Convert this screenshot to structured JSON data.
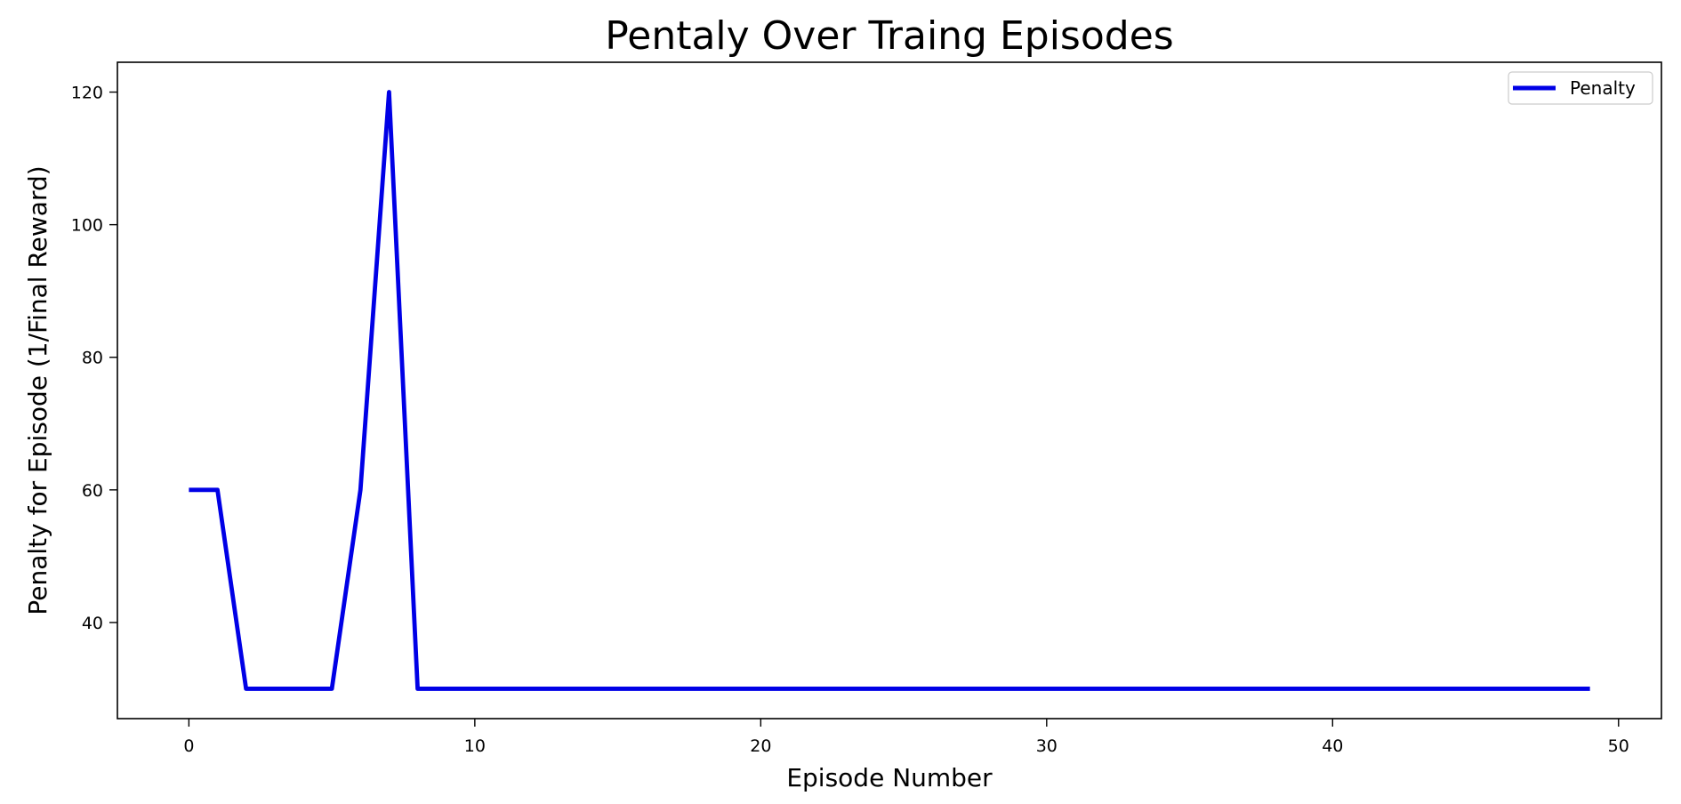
{
  "chart_data": {
    "type": "line",
    "title": "Pentaly Over Traing Episodes",
    "xlabel": "Episode Number",
    "ylabel": "Penalty for Episode (1/Final Reward)",
    "xlim": [
      -2.5,
      51.5
    ],
    "ylim": [
      25.5,
      124.5
    ],
    "xticks": [
      0,
      10,
      20,
      30,
      40,
      50
    ],
    "yticks": [
      40,
      60,
      80,
      100,
      120
    ],
    "legend": {
      "placement": "top-right"
    },
    "grid": false,
    "series": [
      {
        "name": "Penalty",
        "color": "#0000e6",
        "x": [
          0,
          1,
          2,
          3,
          4,
          5,
          6,
          7,
          8,
          9,
          10,
          11,
          12,
          13,
          14,
          15,
          16,
          17,
          18,
          19,
          20,
          21,
          22,
          23,
          24,
          25,
          26,
          27,
          28,
          29,
          30,
          31,
          32,
          33,
          34,
          35,
          36,
          37,
          38,
          39,
          40,
          41,
          42,
          43,
          44,
          45,
          46,
          47,
          48,
          49
        ],
        "values": [
          60,
          60,
          30,
          30,
          30,
          30,
          60,
          120,
          30,
          30,
          30,
          30,
          30,
          30,
          30,
          30,
          30,
          30,
          30,
          30,
          30,
          30,
          30,
          30,
          30,
          30,
          30,
          30,
          30,
          30,
          30,
          30,
          30,
          30,
          30,
          30,
          30,
          30,
          30,
          30,
          30,
          30,
          30,
          30,
          30,
          30,
          30,
          30,
          30,
          30
        ]
      }
    ]
  }
}
